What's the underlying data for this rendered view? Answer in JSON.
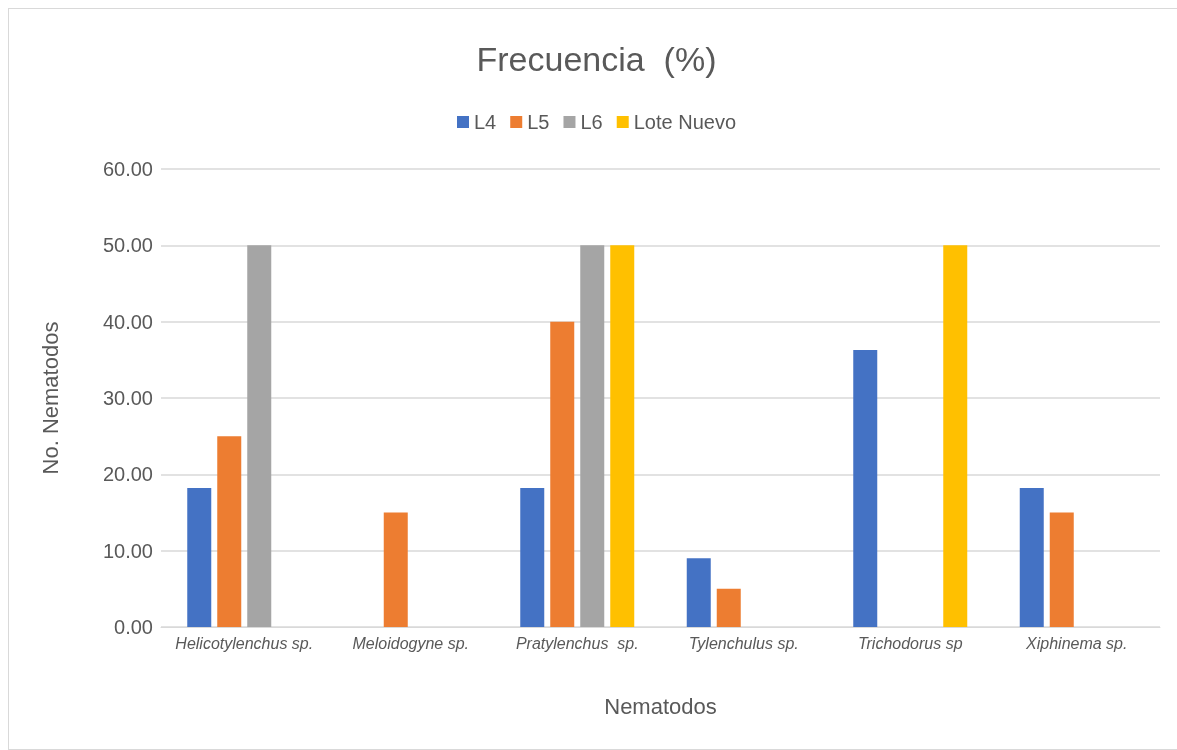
{
  "chart_data": {
    "type": "bar",
    "title": "Frecuencia  (%)",
    "xlabel": "Nematodos",
    "ylabel": "No. Nematodos",
    "categories": [
      "Helicotylenchus sp.",
      "Meloidogyne sp.",
      "Pratylenchus  sp.",
      "Tylenchulus sp.",
      "Trichodorus sp",
      "Xiphinema sp."
    ],
    "series": [
      {
        "name": "L4",
        "color": "#4472c4",
        "values": [
          18.2,
          null,
          18.2,
          9.0,
          36.3,
          18.2
        ]
      },
      {
        "name": "L5",
        "color": "#ed7d31",
        "values": [
          25,
          15,
          40,
          5,
          null,
          15
        ]
      },
      {
        "name": "L6",
        "color": "#a5a5a5",
        "values": [
          50,
          null,
          50,
          null,
          null,
          null
        ]
      },
      {
        "name": "Lote Nuevo",
        "color": "#ffc000",
        "values": [
          null,
          null,
          50,
          null,
          50,
          null
        ]
      }
    ],
    "ylim": [
      0,
      60
    ],
    "yticks": [
      {
        "value": 0,
        "label": "0.00"
      },
      {
        "value": 10,
        "label": "10.00"
      },
      {
        "value": 20,
        "label": "20.00"
      },
      {
        "value": 30,
        "label": "30.00"
      },
      {
        "value": 40,
        "label": "40.00"
      },
      {
        "value": 50,
        "label": "50.00"
      },
      {
        "value": 60,
        "label": "60.00"
      }
    ],
    "grid": "y",
    "legend": "top"
  }
}
